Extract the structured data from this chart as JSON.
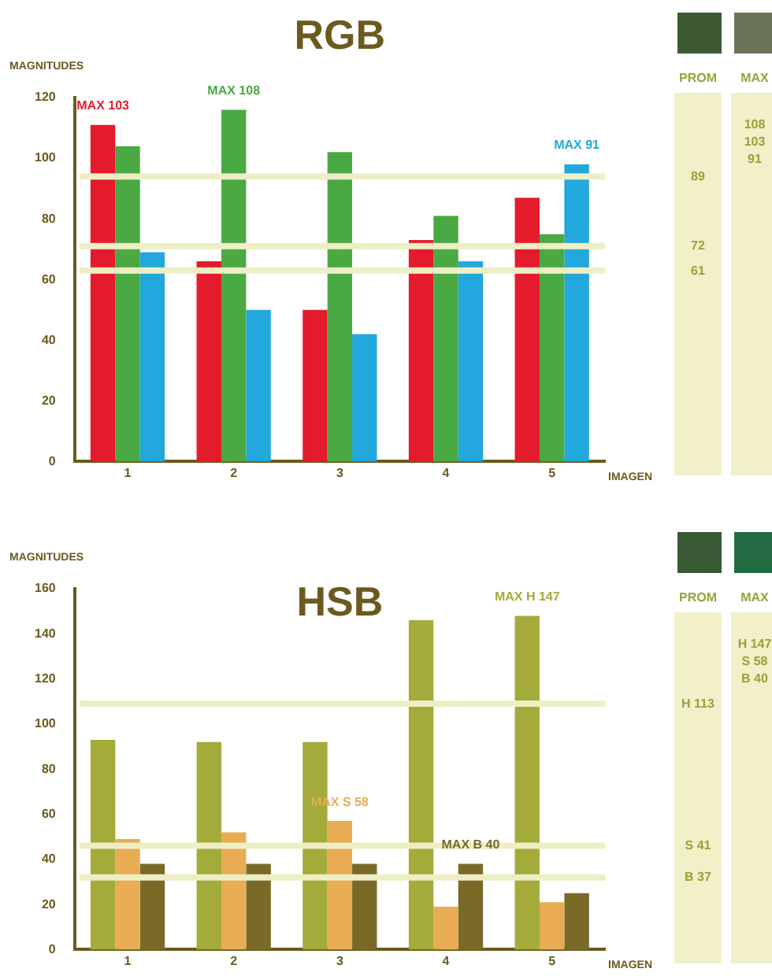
{
  "chart_data": [
    {
      "type": "bar",
      "title": "RGB",
      "xlabel": "IMAGEN",
      "ylabel": "MAGNITUDES",
      "categories": [
        "1",
        "2",
        "3",
        "4",
        "5"
      ],
      "series": [
        {
          "color": "#e41b2c",
          "values": [
            111,
            66,
            50,
            73,
            87
          ]
        },
        {
          "color": "#4aa943",
          "values": [
            104,
            116,
            102,
            81,
            75
          ]
        },
        {
          "color": "#22a8dc",
          "values": [
            69,
            50,
            42,
            66,
            98
          ]
        }
      ],
      "ylim": [
        0,
        120
      ],
      "yticks": [
        0,
        20,
        40,
        60,
        80,
        100,
        120
      ],
      "grid": false,
      "legend": false,
      "ref_lines": [
        {
          "axis": "y",
          "value": 94,
          "color": "#eeeec4"
        },
        {
          "axis": "y",
          "value": 71,
          "color": "#eeeec4"
        },
        {
          "axis": "y",
          "value": 63,
          "color": "#eeeec4"
        }
      ],
      "annotations": [
        "MAX 103",
        "MAX 108",
        "MAX 91"
      ]
    },
    {
      "type": "other",
      "categories": [
        "PROM",
        "MAX"
      ],
      "annotations": [
        "89",
        "72",
        "61",
        "108",
        "103",
        "91"
      ]
    },
    {
      "type": "bar",
      "title": "HSB",
      "xlabel": "IMAGEN",
      "ylabel": "MAGNITUDES",
      "categories": [
        "1",
        "2",
        "3",
        "4",
        "5"
      ],
      "series": [
        {
          "color": "#a3ab3a",
          "values": [
            93,
            92,
            92,
            146,
            148
          ]
        },
        {
          "color": "#e8ac55",
          "values": [
            49,
            52,
            57,
            19,
            21
          ]
        },
        {
          "color": "#7a6a28",
          "values": [
            38,
            38,
            38,
            38,
            25
          ]
        }
      ],
      "ylim": [
        0,
        160
      ],
      "yticks": [
        0,
        20,
        40,
        60,
        80,
        100,
        120,
        140,
        160
      ],
      "grid": false,
      "legend": false,
      "ref_lines": [
        {
          "axis": "y",
          "value": 109,
          "color": "#eeeec4"
        },
        {
          "axis": "y",
          "value": 46,
          "color": "#eeeec4"
        },
        {
          "axis": "y",
          "value": 32,
          "color": "#eeeec4"
        }
      ],
      "annotations": [
        "MAX H 147",
        "MAX S 58",
        "MAX B 40"
      ]
    },
    {
      "type": "other",
      "categories": [
        "PROM",
        "MAX"
      ],
      "annotations": [
        "H 113",
        "S 41",
        "B 37",
        "H 147",
        "S 58",
        "B 40"
      ]
    }
  ]
}
